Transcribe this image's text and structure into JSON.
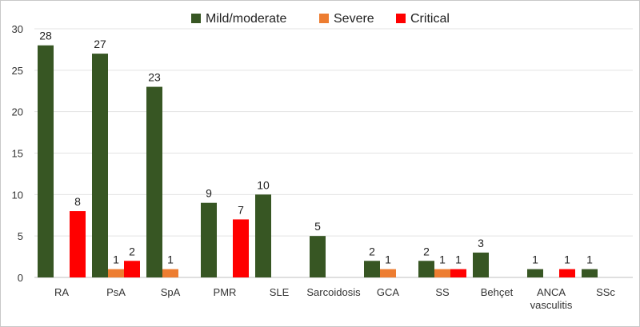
{
  "chart_data": {
    "type": "bar",
    "title": "",
    "xlabel": "",
    "ylabel": "",
    "ylim": [
      0,
      30
    ],
    "yticks": [
      0,
      5,
      10,
      15,
      20,
      25,
      30
    ],
    "grid": true,
    "legend_position": "top-center",
    "categories": [
      [
        "RA"
      ],
      [
        "PsA"
      ],
      [
        "SpA"
      ],
      [
        "PMR"
      ],
      [
        "SLE"
      ],
      [
        "Sarcoidosis"
      ],
      [
        "GCA"
      ],
      [
        "SS"
      ],
      [
        "Behçet"
      ],
      [
        "ANCA",
        "vasculitis"
      ],
      [
        "SSc"
      ]
    ],
    "series": [
      {
        "name": "Mild/moderate",
        "color": "#375623",
        "values": [
          28,
          27,
          23,
          9,
          10,
          5,
          2,
          2,
          3,
          1,
          1
        ]
      },
      {
        "name": "Severe",
        "color": "#ED7D31",
        "values": [
          null,
          1,
          1,
          null,
          null,
          null,
          1,
          1,
          null,
          null,
          null
        ]
      },
      {
        "name": "Critical",
        "color": "#FF0000",
        "values": [
          8,
          2,
          null,
          7,
          null,
          null,
          null,
          1,
          null,
          1,
          null
        ]
      }
    ]
  }
}
